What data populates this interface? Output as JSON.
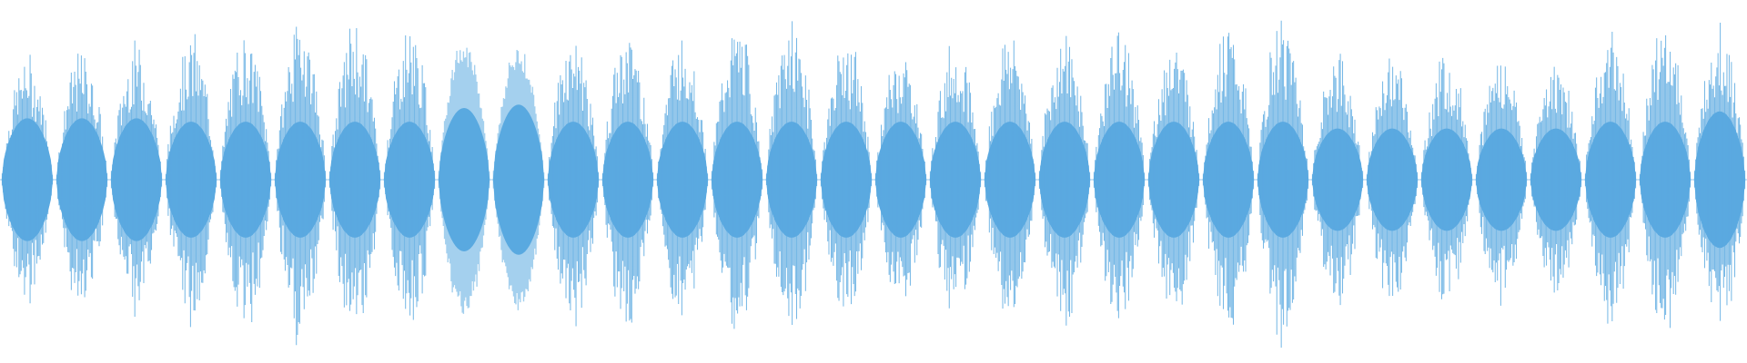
{
  "waveform": {
    "color": "#5aa9e0",
    "segment_count": 32,
    "segments": [
      {
        "peak": 0.76,
        "core": 0.36
      },
      {
        "peak": 0.8,
        "core": 0.36
      },
      {
        "peak": 0.84,
        "core": 0.36
      },
      {
        "peak": 0.9,
        "core": 0.34
      },
      {
        "peak": 0.92,
        "core": 0.34
      },
      {
        "peak": 1.0,
        "core": 0.34
      },
      {
        "peak": 0.96,
        "core": 0.34
      },
      {
        "peak": 0.94,
        "core": 0.34
      },
      {
        "peak": 0.84,
        "core": 0.42,
        "smooth": true
      },
      {
        "peak": 0.8,
        "core": 0.44,
        "smooth": true
      },
      {
        "peak": 0.92,
        "core": 0.34
      },
      {
        "peak": 0.94,
        "core": 0.34
      },
      {
        "peak": 0.92,
        "core": 0.34
      },
      {
        "peak": 0.96,
        "core": 0.34
      },
      {
        "peak": 0.98,
        "core": 0.34
      },
      {
        "peak": 0.88,
        "core": 0.34
      },
      {
        "peak": 0.8,
        "core": 0.34
      },
      {
        "peak": 0.86,
        "core": 0.34
      },
      {
        "peak": 0.92,
        "core": 0.34
      },
      {
        "peak": 0.9,
        "core": 0.34
      },
      {
        "peak": 0.94,
        "core": 0.34
      },
      {
        "peak": 0.88,
        "core": 0.34
      },
      {
        "peak": 0.96,
        "core": 0.34
      },
      {
        "peak": 1.0,
        "core": 0.34
      },
      {
        "peak": 0.78,
        "core": 0.3
      },
      {
        "peak": 0.76,
        "core": 0.3
      },
      {
        "peak": 0.8,
        "core": 0.3
      },
      {
        "peak": 0.78,
        "core": 0.3
      },
      {
        "peak": 0.76,
        "core": 0.3
      },
      {
        "peak": 0.94,
        "core": 0.34
      },
      {
        "peak": 1.0,
        "core": 0.34
      },
      {
        "peak": 0.96,
        "core": 0.4
      }
    ]
  }
}
